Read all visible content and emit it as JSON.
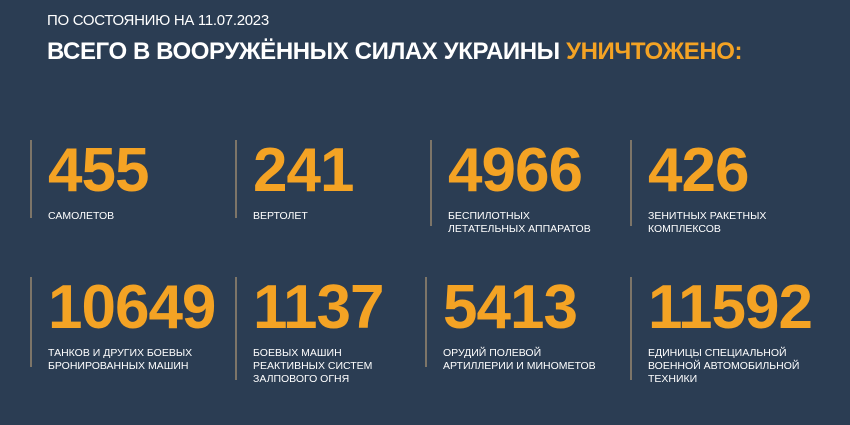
{
  "header": {
    "date_line": "ПО СОСТОЯНИЮ НА 11.07.2023",
    "title_main": "ВСЕГО В ВООРУЖЁННЫХ СИЛАХ УКРАИНЫ",
    "title_accent": "УНИЧТОЖЕНО:"
  },
  "colors": {
    "background": "#2b3d53",
    "accent": "#f4a324",
    "text": "#ffffff"
  },
  "stats": [
    {
      "value": "455",
      "label": "САМОЛЕТОВ"
    },
    {
      "value": "241",
      "label": "ВЕРТОЛЕТ"
    },
    {
      "value": "4966",
      "label": "БЕСПИЛОТНЫХ\nЛЕТАТЕЛЬНЫХ АППАРАТОВ"
    },
    {
      "value": "426",
      "label": "ЗЕНИТНЫХ РАКЕТНЫХ\nКОМПЛЕКСОВ"
    },
    {
      "value": "10649",
      "label": "ТАНКОВ И ДРУГИХ БОЕВЫХ\nБРОНИРОВАННЫХ МАШИН"
    },
    {
      "value": "1137",
      "label": "БОЕВЫХ МАШИН\nРЕАКТИВНЫХ СИСТЕМ\nЗАЛПОВОГО ОГНЯ"
    },
    {
      "value": "5413",
      "label": "ОРУДИЙ ПОЛЕВОЙ\nАРТИЛЛЕРИИ И МИНОМЕТОВ"
    },
    {
      "value": "11592",
      "label": "ЕДИНИЦЫ СПЕЦИАЛЬНОЙ\nВОЕННОЙ АВТОМОБИЛЬНОЙ\nТЕХНИКИ"
    }
  ]
}
